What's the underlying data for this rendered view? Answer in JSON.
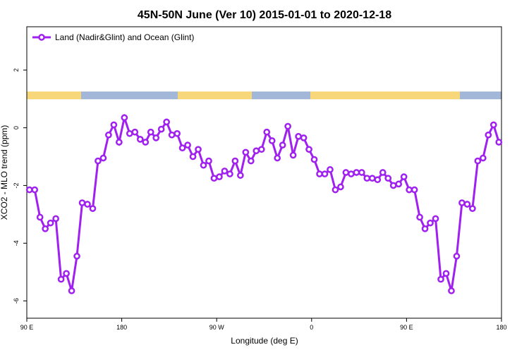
{
  "chart_data": {
    "type": "line",
    "title": "45N-50N June (Ver 10)   2015-01-01 to 2020-12-18",
    "x_label": "Longitude (deg E)",
    "y_label": "XCO2 - MLO trend (ppm)",
    "xlim": [
      90,
      540
    ],
    "ylim": [
      -6.6,
      3.5
    ],
    "xticks": [
      {
        "value": 90,
        "label": "90 E"
      },
      180,
      {
        "value": 270,
        "label": "90 W"
      },
      {
        "value": 360,
        "label": "0"
      },
      {
        "value": 450,
        "label": "90 E"
      },
      {
        "value": 540,
        "label": "180"
      }
    ],
    "yticks": [
      -6,
      -4,
      -2,
      0,
      2
    ],
    "legend": "top-left",
    "x": [
      92.5,
      97.5,
      102.5,
      107.5,
      112.5,
      117.5,
      122.5,
      127.5,
      132.5,
      137.5,
      142.5,
      147.5,
      152.5,
      157.5,
      162.5,
      167.5,
      172.5,
      177.5,
      182.5,
      187.5,
      192.5,
      197.5,
      202.5,
      207.5,
      212.5,
      217.5,
      222.5,
      227.5,
      232.5,
      237.5,
      242.5,
      247.5,
      252.5,
      257.5,
      262.5,
      267.5,
      272.5,
      277.5,
      282.5,
      287.5,
      292.5,
      297.5,
      302.5,
      307.5,
      312.5,
      317.5,
      322.5,
      327.5,
      332.5,
      337.5,
      342.5,
      347.5,
      352.5,
      357.5,
      362.5,
      367.5,
      372.5,
      377.5,
      382.5,
      387.5,
      392.5,
      397.5,
      402.5,
      407.5,
      412.5,
      417.5,
      422.5,
      427.5,
      432.5,
      437.5,
      442.5,
      447.5,
      452.5,
      457.5,
      462.5,
      467.5,
      472.5,
      477.5,
      482.5,
      487.5,
      492.5,
      497.5,
      502.5,
      507.5,
      512.5,
      517.5,
      522.5,
      527.5,
      532.5,
      537.5
    ],
    "series": [
      {
        "name": "Land (Nadir&Glint) and Ocean (Glint)",
        "color": "#a020f0",
        "values": [
          -2.15,
          -2.15,
          -3.1,
          -3.5,
          -3.3,
          -3.15,
          -5.25,
          -5.05,
          -5.65,
          -4.45,
          -2.6,
          -2.65,
          -2.8,
          -1.15,
          -1.05,
          -0.25,
          0.1,
          -0.5,
          0.35,
          -0.2,
          -0.15,
          -0.4,
          -0.5,
          -0.15,
          -0.35,
          -0.05,
          0.2,
          -0.25,
          -0.2,
          -0.7,
          -0.6,
          -1.0,
          -0.75,
          -1.3,
          -1.15,
          -1.75,
          -1.7,
          -1.5,
          -1.6,
          -1.15,
          -1.65,
          -0.85,
          -1.15,
          -0.8,
          -0.75,
          -0.15,
          -0.45,
          -1.05,
          -0.6,
          0.05,
          -0.95,
          -0.3,
          -0.35,
          -0.75,
          -1.1,
          -1.6,
          -1.6,
          -1.45,
          -2.15,
          -2.05,
          -1.55,
          -1.6,
          -1.55,
          -1.55,
          -1.75,
          -1.75,
          -1.8,
          -1.55,
          -1.75,
          -2.0,
          -1.95,
          -1.7,
          -2.15,
          -2.15,
          -3.1,
          -3.5,
          -3.3,
          -3.15,
          -5.25,
          -5.05,
          -5.65,
          -4.45,
          -2.6,
          -2.65,
          -2.8,
          -1.15,
          -1.05,
          -0.25,
          0.1,
          -0.5
        ]
      }
    ]
  }
}
